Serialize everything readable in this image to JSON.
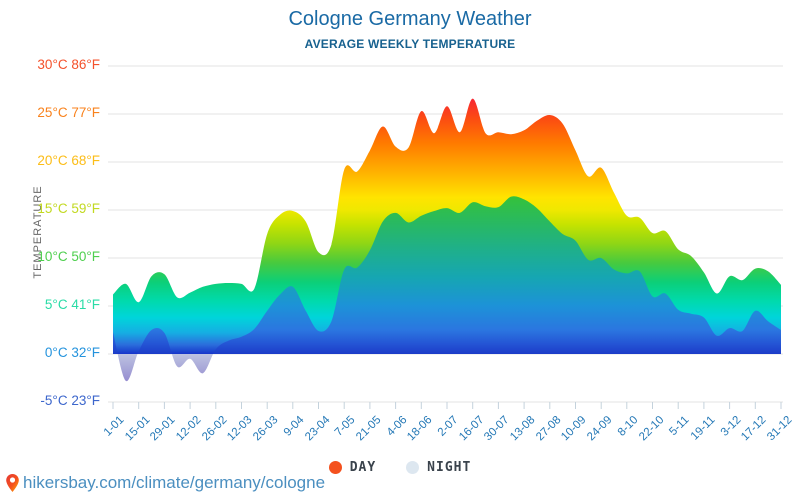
{
  "title": "Cologne Germany Weather",
  "subtitle": "AVERAGE WEEKLY TEMPERATURE",
  "y_axis": {
    "label": "TEMPERATURE",
    "ticks": [
      {
        "label": "30°C 86°F",
        "t": 30,
        "color": "#f4512b"
      },
      {
        "label": "25°C 77°F",
        "t": 25,
        "color": "#f9821c"
      },
      {
        "label": "20°C 68°F",
        "t": 20,
        "color": "#fcbd17"
      },
      {
        "label": "15°C 59°F",
        "t": 15,
        "color": "#c2d921"
      },
      {
        "label": "10°C 50°F",
        "t": 10,
        "color": "#4ecf4e"
      },
      {
        "label": "5°C 41°F",
        "t": 5,
        "color": "#29dca6"
      },
      {
        "label": "0°C 32°F",
        "t": 0,
        "color": "#2493dd"
      },
      {
        "label": "-5°C 23°F",
        "t": -5,
        "color": "#3c66cc"
      }
    ]
  },
  "x_axis": {
    "ticks": [
      "1-01",
      "15-01",
      "29-01",
      "12-02",
      "26-02",
      "12-03",
      "26-03",
      "9-04",
      "23-04",
      "7-05",
      "21-05",
      "4-06",
      "18-06",
      "2-07",
      "16-07",
      "30-07",
      "13-08",
      "27-08",
      "10-09",
      "24-09",
      "8-10",
      "22-10",
      "5-11",
      "19-11",
      "3-12",
      "17-12",
      "31-12"
    ]
  },
  "legend": [
    {
      "label": "DAY",
      "color": "#f4511e"
    },
    {
      "label": "NIGHT",
      "color": "#dde7f0"
    }
  ],
  "footer": {
    "url": "hikersbay.com/climate/germany/cologne"
  },
  "chart_data": {
    "type": "area",
    "title": "Cologne Germany Weather",
    "subtitle": "AVERAGE WEEKLY TEMPERATURE",
    "ylabel": "TEMPERATURE",
    "unit": "°C",
    "ylim": [
      -5,
      30
    ],
    "y_ticks": [
      30,
      25,
      20,
      15,
      10,
      5,
      0,
      -5
    ],
    "x_tick_labels": [
      "1-01",
      "15-01",
      "29-01",
      "12-02",
      "26-02",
      "12-03",
      "26-03",
      "9-04",
      "23-04",
      "7-05",
      "21-05",
      "4-06",
      "18-06",
      "2-07",
      "16-07",
      "30-07",
      "13-08",
      "27-08",
      "10-09",
      "24-09",
      "8-10",
      "22-10",
      "5-11",
      "19-11",
      "3-12",
      "17-12",
      "31-12"
    ],
    "sampling": "weekly (53 points, 1-01 through 31-12)",
    "series": [
      {
        "name": "DAY",
        "values": [
          6.2,
          7.3,
          5.4,
          8.1,
          8.3,
          5.9,
          6.4,
          7.0,
          7.3,
          7.4,
          7.3,
          6.8,
          12.5,
          14.5,
          14.9,
          13.8,
          10.6,
          11.4,
          19.2,
          19.0,
          21.2,
          23.7,
          21.6,
          21.5,
          25.3,
          23.0,
          25.8,
          23.1,
          26.6,
          23.0,
          23.1,
          22.9,
          23.3,
          24.3,
          24.9,
          24.0,
          21.2,
          18.5,
          19.4,
          16.8,
          14.4,
          14.2,
          12.6,
          12.8,
          10.9,
          10.2,
          8.5,
          6.3,
          8.1,
          7.7,
          8.9,
          8.6,
          7.2
        ]
      },
      {
        "name": "NIGHT",
        "values": [
          2.3,
          -2.8,
          0.3,
          2.5,
          2.2,
          -1.3,
          -0.5,
          -2.0,
          0.5,
          1.4,
          1.8,
          2.6,
          4.5,
          6.2,
          7.0,
          4.5,
          2.4,
          3.4,
          8.8,
          9.0,
          10.8,
          13.8,
          14.7,
          13.7,
          14.4,
          14.9,
          15.2,
          14.7,
          15.8,
          15.4,
          15.3,
          16.4,
          16.1,
          15.2,
          13.8,
          12.5,
          11.8,
          9.8,
          10.0,
          8.8,
          8.4,
          8.6,
          6.0,
          6.3,
          4.6,
          4.2,
          3.8,
          1.9,
          2.7,
          2.4,
          4.5,
          3.4,
          2.5
        ]
      }
    ],
    "colors": {
      "grid": "#e3e3e3",
      "axis_tick": "#c4d2dc",
      "day_gradient": [
        {
          "t": 30,
          "c": "#e8124a"
        },
        {
          "t": 26.8,
          "c": "#f62436"
        },
        {
          "t": 24.5,
          "c": "#fc4c12"
        },
        {
          "t": 22,
          "c": "#ff7a00"
        },
        {
          "t": 20,
          "c": "#ff9e00"
        },
        {
          "t": 18,
          "c": "#ffc300"
        },
        {
          "t": 16.3,
          "c": "#ffe400"
        },
        {
          "t": 15,
          "c": "#efe800"
        },
        {
          "t": 13.5,
          "c": "#c6e300"
        },
        {
          "t": 11.5,
          "c": "#8fd615"
        },
        {
          "t": 9.5,
          "c": "#48ca3e"
        },
        {
          "t": 7.5,
          "c": "#0ccf78"
        },
        {
          "t": 5.5,
          "c": "#00daad"
        },
        {
          "t": 3.8,
          "c": "#00d5da"
        },
        {
          "t": 2.2,
          "c": "#16ade3"
        },
        {
          "t": 1,
          "c": "#2b6fdc"
        },
        {
          "t": 0,
          "c": "#1634ca"
        }
      ],
      "night_gradient": [
        {
          "t": 17,
          "c": "#38c433"
        },
        {
          "t": 14,
          "c": "#2aba5c"
        },
        {
          "t": 11,
          "c": "#1fb089"
        },
        {
          "t": 8,
          "c": "#16a6b2"
        },
        {
          "t": 5,
          "c": "#1d92d8"
        },
        {
          "t": 2.5,
          "c": "#2b76e0"
        },
        {
          "t": 1,
          "c": "#2453d4"
        },
        {
          "t": 0,
          "c": "#1c3cc8"
        }
      ],
      "night_below_zero_gradient": [
        {
          "t": 0,
          "c": "#bdc3e1"
        },
        {
          "t": -1.5,
          "c": "#a8a7d8"
        },
        {
          "t": -3,
          "c": "#9489cf"
        },
        {
          "t": -4.3,
          "c": "#8474c8"
        }
      ]
    }
  }
}
